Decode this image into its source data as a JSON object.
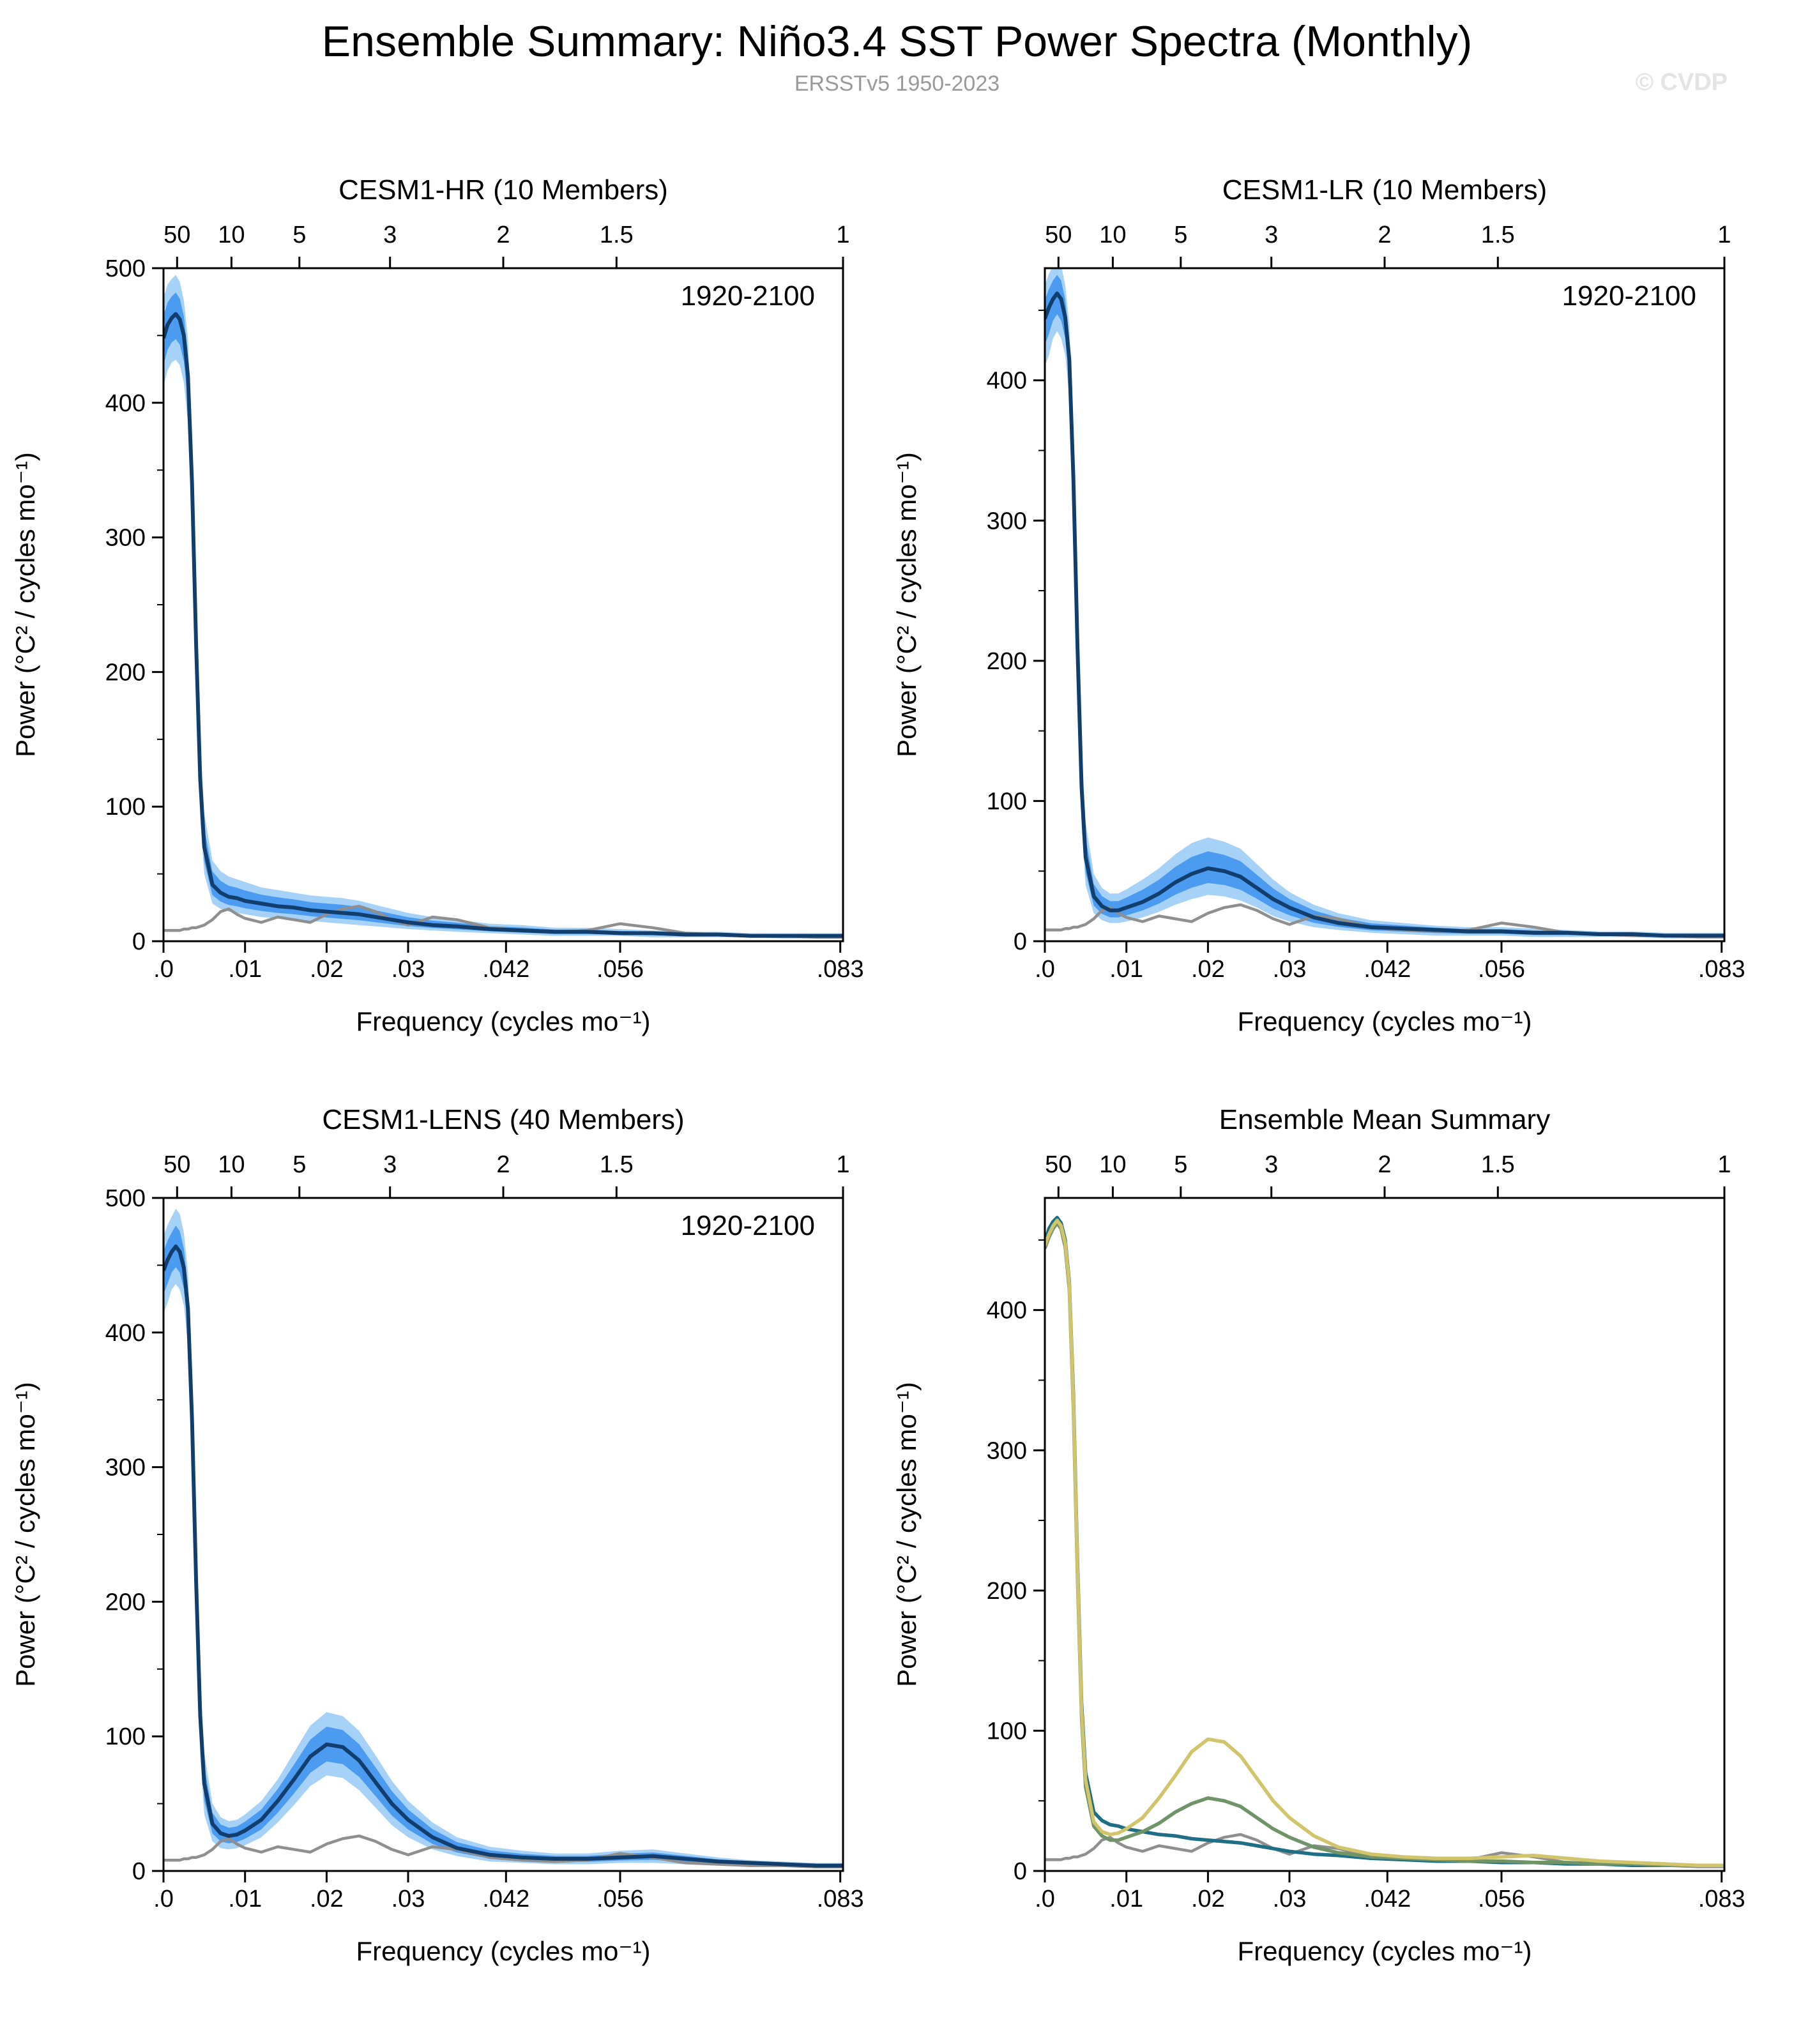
{
  "page": {
    "title": "Ensemble Summary: Niño3.4 SST Power Spectra (Monthly)",
    "subtitle": "ERSSTv5 1950-2023",
    "watermark": "© CVDP"
  },
  "chart_data": {
    "type": "line",
    "layout": "2x2 panels, shaded ensemble spread with mean line, gray observation line",
    "xlabel": "Frequency (cycles mo⁻¹)",
    "ylabel": "Power (°C² / cycles mo⁻¹)",
    "xlim": [
      0,
      0.083333
    ],
    "xticks": [
      {
        "v": 0,
        "label": ".0"
      },
      {
        "v": 0.01,
        "label": ".01"
      },
      {
        "v": 0.02,
        "label": ".02"
      },
      {
        "v": 0.03,
        "label": ".03"
      },
      {
        "v": 0.042,
        "label": ".042"
      },
      {
        "v": 0.056,
        "label": ".056"
      },
      {
        "v": 0.083,
        "label": ".083"
      }
    ],
    "top_axis_label_meaning": "period in years",
    "top_ticks": [
      {
        "v": 0.001667,
        "label": "50"
      },
      {
        "v": 0.008333,
        "label": "10"
      },
      {
        "v": 0.016667,
        "label": "5"
      },
      {
        "v": 0.027778,
        "label": "3"
      },
      {
        "v": 0.041667,
        "label": "2"
      },
      {
        "v": 0.055556,
        "label": "1.5"
      },
      {
        "v": 0.083333,
        "label": "1"
      }
    ],
    "freq": [
      0.0,
      0.0005,
      0.001,
      0.0015,
      0.002,
      0.0025,
      0.003,
      0.0035,
      0.004,
      0.0045,
      0.005,
      0.006,
      0.007,
      0.008,
      0.009,
      0.01,
      0.012,
      0.014,
      0.016,
      0.018,
      0.02,
      0.022,
      0.024,
      0.026,
      0.028,
      0.03,
      0.033,
      0.036,
      0.04,
      0.044,
      0.048,
      0.052,
      0.056,
      0.06,
      0.064,
      0.068,
      0.072,
      0.076,
      0.08,
      0.0833
    ],
    "obs": {
      "name": "ERSSTv5 1950-2023 observations",
      "color": "#8f8f8f",
      "values": [
        8,
        8,
        8,
        8,
        8,
        9,
        9,
        10,
        10,
        11,
        12,
        16,
        22,
        24,
        20,
        17,
        14,
        18,
        16,
        14,
        20,
        24,
        26,
        22,
        16,
        12,
        18,
        16,
        10,
        8,
        7,
        8,
        13,
        10,
        6,
        5,
        4,
        4,
        3,
        3
      ]
    },
    "panels": [
      {
        "id": "hr",
        "title": "CESM1-HR (10 Members)",
        "title_color": "#1e6e86",
        "annotation": "1920-2100",
        "ylim": [
          0,
          500
        ],
        "yticks": [
          0,
          100,
          200,
          300,
          400,
          500
        ],
        "mean_color": "#123e6d",
        "band_outer_color": "#a6d2f7",
        "band_inner_color": "#4b9bf0",
        "show_obs": true,
        "mean": [
          448,
          458,
          463,
          466,
          462,
          450,
          420,
          340,
          220,
          120,
          70,
          42,
          36,
          33,
          32,
          30,
          28,
          26,
          25,
          23,
          22,
          21,
          20,
          18,
          16,
          14,
          12,
          11,
          9,
          8,
          7,
          7,
          6,
          6,
          5,
          5,
          4,
          4,
          4,
          4
        ],
        "band_hi": [
          478,
          488,
          492,
          495,
          490,
          476,
          448,
          375,
          260,
          150,
          95,
          60,
          52,
          48,
          46,
          44,
          40,
          38,
          36,
          34,
          33,
          32,
          30,
          27,
          24,
          21,
          18,
          16,
          13,
          12,
          10,
          10,
          9,
          8,
          7,
          7,
          6,
          6,
          6,
          6
        ],
        "band_lo": [
          412,
          424,
          430,
          432,
          428,
          415,
          385,
          300,
          180,
          90,
          50,
          28,
          24,
          22,
          21,
          20,
          18,
          17,
          16,
          15,
          14,
          13,
          12,
          11,
          10,
          9,
          8,
          7,
          6,
          5,
          4,
          4,
          4,
          3,
          3,
          3,
          3,
          2,
          2,
          2
        ]
      },
      {
        "id": "lr",
        "title": "CESM1-LR (10 Members)",
        "title_color": "#6f9468",
        "annotation": "1920-2100",
        "ylim": [
          0,
          480
        ],
        "yticks": [
          0,
          100,
          200,
          300,
          400
        ],
        "mean_color": "#123e6d",
        "band_outer_color": "#a6d2f7",
        "band_inner_color": "#4b9bf0",
        "show_obs": true,
        "mean": [
          444,
          452,
          458,
          462,
          458,
          445,
          415,
          330,
          210,
          110,
          60,
          32,
          25,
          22,
          22,
          24,
          28,
          34,
          42,
          48,
          52,
          50,
          46,
          38,
          30,
          24,
          17,
          13,
          10,
          9,
          8,
          7,
          7,
          6,
          6,
          5,
          5,
          4,
          4,
          4
        ],
        "band_hi": [
          468,
          476,
          482,
          486,
          482,
          468,
          440,
          365,
          250,
          140,
          85,
          48,
          38,
          34,
          34,
          37,
          44,
          52,
          62,
          70,
          74,
          71,
          66,
          55,
          44,
          35,
          26,
          20,
          15,
          13,
          11,
          10,
          10,
          9,
          8,
          7,
          7,
          6,
          6,
          6
        ],
        "band_lo": [
          410,
          418,
          430,
          435,
          430,
          418,
          388,
          295,
          170,
          82,
          40,
          20,
          15,
          13,
          13,
          14,
          17,
          21,
          26,
          30,
          33,
          32,
          29,
          24,
          18,
          14,
          10,
          8,
          6,
          5,
          4,
          4,
          4,
          3,
          3,
          3,
          3,
          2,
          2,
          2
        ]
      },
      {
        "id": "lens",
        "title": "CESM1-LENS (40 Members)",
        "title_color": "#d2c46a",
        "annotation": "1920-2100",
        "ylim": [
          0,
          500
        ],
        "yticks": [
          0,
          100,
          200,
          300,
          400,
          500
        ],
        "mean_color": "#123e6d",
        "band_outer_color": "#a6d2f7",
        "band_inner_color": "#4b9bf0",
        "show_obs": true,
        "mean": [
          446,
          454,
          460,
          464,
          460,
          448,
          418,
          335,
          215,
          115,
          65,
          35,
          28,
          26,
          27,
          30,
          38,
          52,
          68,
          85,
          94,
          92,
          82,
          66,
          50,
          38,
          25,
          17,
          12,
          10,
          9,
          9,
          10,
          11,
          9,
          7,
          6,
          5,
          4,
          4
        ],
        "band_hi": [
          472,
          480,
          486,
          492,
          488,
          474,
          445,
          372,
          255,
          145,
          88,
          50,
          40,
          37,
          38,
          42,
          52,
          68,
          88,
          108,
          118,
          115,
          104,
          86,
          67,
          52,
          36,
          25,
          18,
          15,
          13,
          13,
          15,
          16,
          13,
          10,
          8,
          7,
          6,
          6
        ],
        "band_lo": [
          414,
          422,
          432,
          436,
          432,
          420,
          390,
          298,
          175,
          85,
          42,
          22,
          17,
          16,
          17,
          19,
          25,
          36,
          49,
          63,
          71,
          69,
          60,
          47,
          34,
          25,
          16,
          11,
          7,
          6,
          5,
          5,
          6,
          6,
          5,
          4,
          4,
          3,
          3,
          3
        ]
      },
      {
        "id": "summary",
        "title": "Ensemble Mean Summary",
        "title_color": "#000000",
        "ylim": [
          0,
          480
        ],
        "yticks": [
          0,
          100,
          200,
          300,
          400
        ],
        "show_obs": true,
        "lines": [
          {
            "name": "CESM1-HR",
            "ref": "hr",
            "color": "#1e6e86"
          },
          {
            "name": "CESM1-LR",
            "ref": "lr",
            "color": "#6f9468"
          },
          {
            "name": "CESM1-LENS",
            "ref": "lens",
            "color": "#d2c46a"
          }
        ]
      }
    ]
  }
}
